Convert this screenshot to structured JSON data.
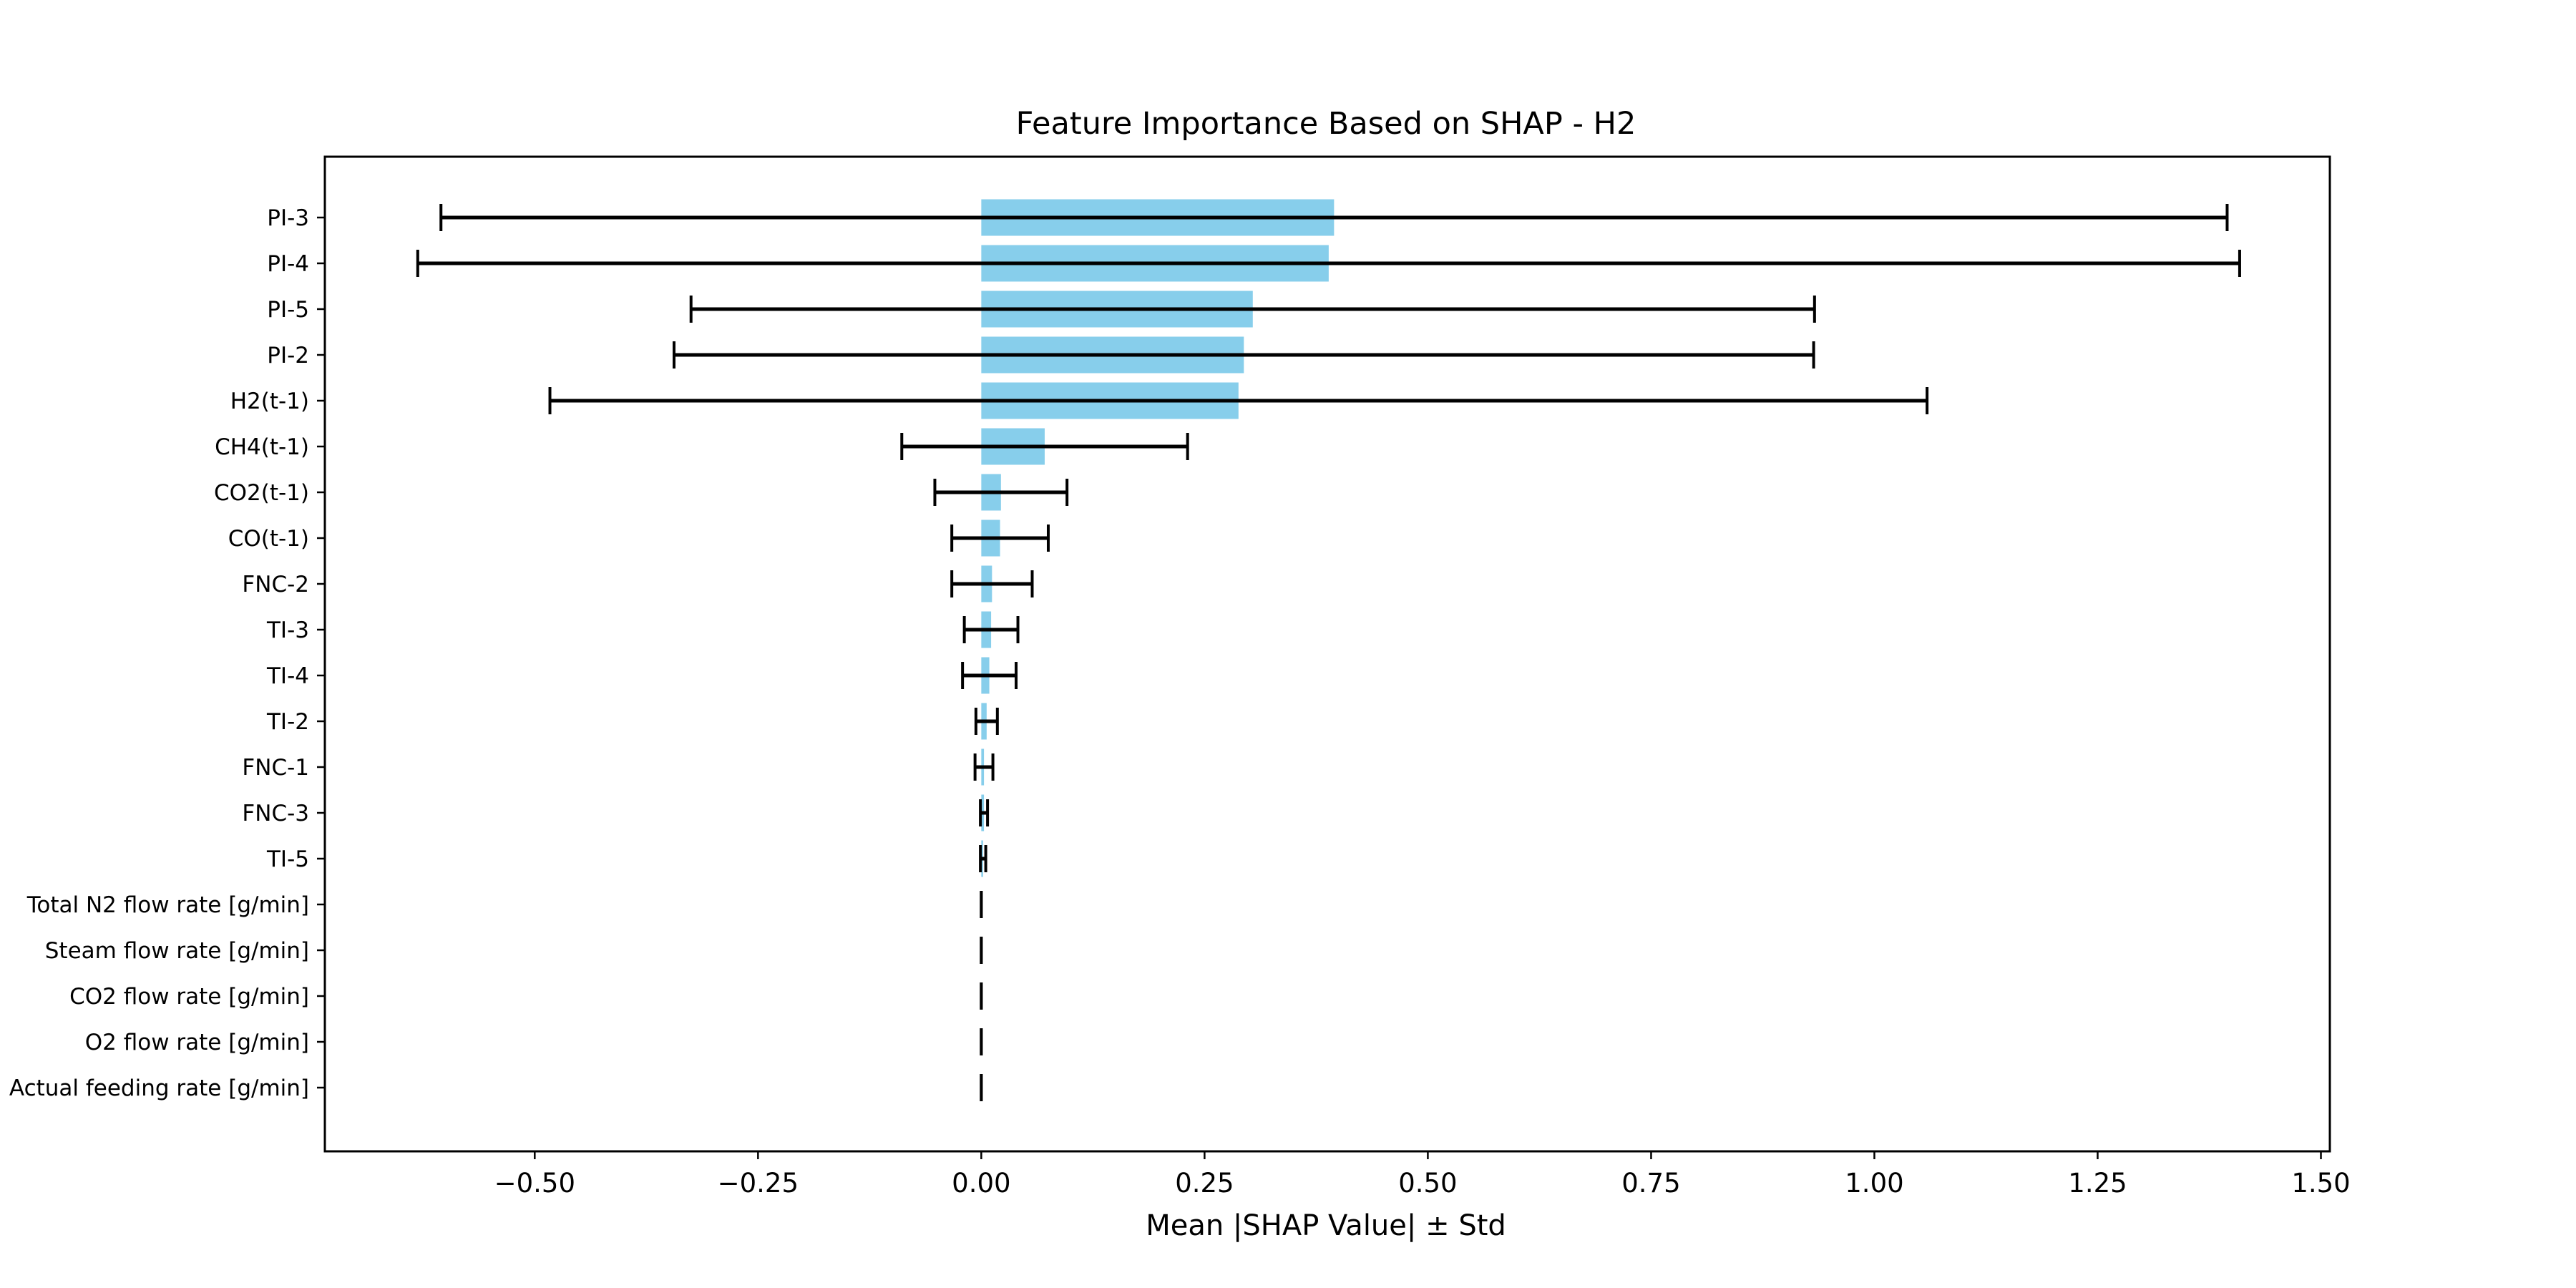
{
  "chart_data": {
    "type": "bar",
    "orientation": "horizontal",
    "title": "Feature Importance Based on SHAP - H2",
    "xlabel": "Mean |SHAP Value| ± Std",
    "ylabel": "",
    "xlim": [
      -0.735,
      1.51
    ],
    "xticks": [
      -0.5,
      -0.25,
      0.0,
      0.25,
      0.5,
      0.75,
      1.0,
      1.25,
      1.5
    ],
    "xtick_labels": [
      "−0.50",
      "−0.25",
      "0.00",
      "0.25",
      "0.50",
      "0.75",
      "1.00",
      "1.25",
      "1.50"
    ],
    "categories": [
      "PI-3",
      "PI-4",
      "PI-5",
      "PI-2",
      "H2(t-1)",
      "CH4(t-1)",
      "CO2(t-1)",
      "CO(t-1)",
      "FNC-2",
      "TI-3",
      "TI-4",
      "TI-2",
      "FNC-1",
      "FNC-3",
      "TI-5",
      "Total N2 flow rate [g/min]",
      "Steam flow rate [g/min]",
      "CO2 flow rate [g/min]",
      "O2 flow rate [g/min]",
      "Actual feeding rate [g/min]"
    ],
    "values": [
      0.395,
      0.389,
      0.304,
      0.294,
      0.288,
      0.071,
      0.022,
      0.021,
      0.012,
      0.011,
      0.009,
      0.006,
      0.003,
      0.003,
      0.002,
      0.0,
      0.0,
      0.0,
      0.0,
      0.0
    ],
    "std": [
      1.0,
      1.02,
      0.629,
      0.638,
      0.771,
      0.16,
      0.074,
      0.054,
      0.045,
      0.03,
      0.03,
      0.012,
      0.01,
      0.004,
      0.003,
      0.0,
      0.0,
      0.0,
      0.0,
      0.0
    ],
    "grid": false,
    "legend": "none",
    "colors": {
      "bar": "#87CEEB",
      "errorbar": "#000000",
      "axes": "#000000",
      "background": "#ffffff"
    }
  }
}
